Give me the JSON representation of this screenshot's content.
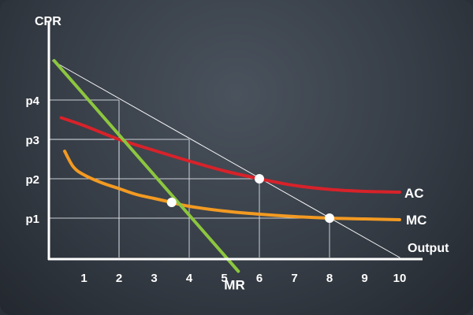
{
  "chart_data": {
    "type": "line",
    "ylabel": "CPR",
    "xlabel": "Output",
    "x_ticks": [
      "1",
      "2",
      "3",
      "4",
      "5",
      "6",
      "7",
      "8",
      "9",
      "10"
    ],
    "xlim": [
      0,
      10
    ],
    "y_levels": [
      {
        "label": "p1",
        "value": 1
      },
      {
        "label": "p2",
        "value": 2
      },
      {
        "label": "p3",
        "value": 3
      },
      {
        "label": "p4",
        "value": 4
      }
    ],
    "ylim": [
      0,
      5.2
    ],
    "series": [
      {
        "name": "AC",
        "color": "#d7222a",
        "x": [
          0.35,
          1,
          2,
          3,
          4,
          5,
          6,
          7,
          8,
          9,
          10
        ],
        "y": [
          3.55,
          3.35,
          3.0,
          2.72,
          2.45,
          2.2,
          2.0,
          1.83,
          1.73,
          1.68,
          1.66
        ]
      },
      {
        "name": "MC",
        "color": "#f39a22",
        "x": [
          0.45,
          0.7,
          1,
          1.5,
          2,
          2.5,
          3,
          3.5,
          4,
          5,
          6,
          7,
          8,
          9,
          10
        ],
        "y": [
          2.7,
          2.3,
          2.1,
          1.9,
          1.75,
          1.6,
          1.5,
          1.4,
          1.3,
          1.18,
          1.1,
          1.04,
          1.0,
          0.98,
          0.96
        ]
      },
      {
        "name": "MR",
        "color": "#8cc63f",
        "x": [
          0.15,
          5.4
        ],
        "y": [
          5.0,
          -0.35
        ]
      },
      {
        "name": "",
        "color": "#ffffff",
        "x": [
          0.1,
          10
        ],
        "y": [
          5.0,
          0
        ]
      }
    ],
    "points": [
      {
        "x": 3.5,
        "y": 1.4
      },
      {
        "x": 6,
        "y": 2.0
      },
      {
        "x": 8,
        "y": 1.0
      }
    ],
    "guides": [
      {
        "x": 2,
        "y": 4
      },
      {
        "x": 2,
        "y": 3
      },
      {
        "x": 4,
        "y": 3
      },
      {
        "x": 6,
        "y": 2
      },
      {
        "x": 8,
        "y": 1
      }
    ],
    "grid": false
  }
}
